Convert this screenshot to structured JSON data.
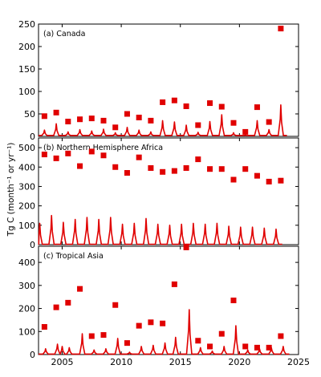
{
  "chart_data": [
    {
      "type": "line",
      "title": "(a) Canada",
      "ylabel": "Tg C (month⁻¹ or yr⁻¹)",
      "ylim": [
        0,
        250
      ],
      "yticks": [
        0,
        50,
        100,
        150,
        200,
        250
      ],
      "xlim": [
        2003,
        2025
      ],
      "xticks": [
        2005,
        2010,
        2015,
        2020,
        2025
      ],
      "xtick_labels_shown": false,
      "grid": false,
      "series": [
        {
          "kind": "annual_squares",
          "color": "#e00000",
          "points": [
            [
              2003.5,
              45
            ],
            [
              2004.5,
              53
            ],
            [
              2005.5,
              33
            ],
            [
              2006.5,
              38
            ],
            [
              2007.5,
              40
            ],
            [
              2008.5,
              35
            ],
            [
              2009.5,
              20
            ],
            [
              2010.5,
              50
            ],
            [
              2011.5,
              42
            ],
            [
              2012.5,
              35
            ],
            [
              2013.5,
              76
            ],
            [
              2014.5,
              80
            ],
            [
              2015.5,
              67
            ],
            [
              2016.5,
              25
            ],
            [
              2017.5,
              74
            ],
            [
              2018.5,
              66
            ],
            [
              2019.5,
              30
            ],
            [
              2020.5,
              10
            ],
            [
              2021.5,
              65
            ],
            [
              2022.5,
              32
            ],
            [
              2023.5,
              240
            ]
          ]
        },
        {
          "kind": "monthly_line",
          "color": "#e00000",
          "peaks": [
            [
              2003.5,
              14
            ],
            [
              2004.5,
              28
            ],
            [
              2005.5,
              10
            ],
            [
              2006.5,
              15
            ],
            [
              2007.5,
              12
            ],
            [
              2008.5,
              16
            ],
            [
              2009.5,
              8
            ],
            [
              2010.5,
              20
            ],
            [
              2011.5,
              14
            ],
            [
              2012.5,
              10
            ],
            [
              2013.5,
              35
            ],
            [
              2014.5,
              32
            ],
            [
              2015.5,
              25
            ],
            [
              2016.5,
              9
            ],
            [
              2017.5,
              33
            ],
            [
              2018.5,
              48
            ],
            [
              2019.5,
              8
            ],
            [
              2020.5,
              4
            ],
            [
              2021.5,
              35
            ],
            [
              2022.5,
              15
            ],
            [
              2023.5,
              70
            ]
          ]
        }
      ]
    },
    {
      "type": "line",
      "title": "(b) Northern Hemisphere Africa",
      "ylim": [
        0,
        550
      ],
      "yticks": [
        0,
        100,
        200,
        300,
        400,
        500
      ],
      "xlim": [
        2003,
        2025
      ],
      "xticks": [
        2005,
        2010,
        2015,
        2020,
        2025
      ],
      "xtick_labels_shown": false,
      "grid": false,
      "series": [
        {
          "kind": "annual_squares",
          "color": "#e00000",
          "points": [
            [
              2003.5,
              465
            ],
            [
              2004.5,
              445
            ],
            [
              2005.5,
              470
            ],
            [
              2006.5,
              405
            ],
            [
              2007.5,
              480
            ],
            [
              2008.5,
              460
            ],
            [
              2009.5,
              400
            ],
            [
              2010.5,
              370
            ],
            [
              2011.5,
              450
            ],
            [
              2012.5,
              395
            ],
            [
              2013.5,
              375
            ],
            [
              2014.5,
              380
            ],
            [
              2015.5,
              395
            ],
            [
              2016.5,
              440
            ],
            [
              2017.5,
              390
            ],
            [
              2018.5,
              390
            ],
            [
              2019.5,
              335
            ],
            [
              2020.5,
              390
            ],
            [
              2021.5,
              355
            ],
            [
              2022.5,
              325
            ],
            [
              2023.5,
              330
            ]
          ]
        },
        {
          "kind": "monthly_line",
          "color": "#e00000",
          "peaks": [
            [
              2003.1,
              110
            ],
            [
              2004.1,
              150
            ],
            [
              2005.1,
              115
            ],
            [
              2006.1,
              130
            ],
            [
              2007.1,
              140
            ],
            [
              2008.1,
              130
            ],
            [
              2009.1,
              140
            ],
            [
              2010.1,
              105
            ],
            [
              2011.1,
              110
            ],
            [
              2012.1,
              135
            ],
            [
              2013.1,
              105
            ],
            [
              2014.1,
              100
            ],
            [
              2015.1,
              105
            ],
            [
              2016.1,
              110
            ],
            [
              2017.1,
              105
            ],
            [
              2018.1,
              110
            ],
            [
              2019.1,
              95
            ],
            [
              2020.1,
              90
            ],
            [
              2021.1,
              90
            ],
            [
              2022.1,
              85
            ],
            [
              2023.1,
              80
            ]
          ]
        }
      ]
    },
    {
      "type": "line",
      "title": "(c) Tropical Asia",
      "ylim": [
        0,
        470
      ],
      "yticks": [
        0,
        100,
        200,
        300,
        400
      ],
      "xlim": [
        2003,
        2025
      ],
      "xticks": [
        2005,
        2010,
        2015,
        2020,
        2025
      ],
      "xtick_labels_shown": true,
      "grid": false,
      "series": [
        {
          "kind": "annual_squares",
          "color": "#e00000",
          "points": [
            [
              2003.5,
              120
            ],
            [
              2004.5,
              205
            ],
            [
              2005.5,
              225
            ],
            [
              2006.5,
              285
            ],
            [
              2007.5,
              80
            ],
            [
              2008.5,
              85
            ],
            [
              2009.5,
              215
            ],
            [
              2010.5,
              50
            ],
            [
              2011.5,
              125
            ],
            [
              2012.5,
              140
            ],
            [
              2013.5,
              135
            ],
            [
              2014.5,
              305
            ],
            [
              2015.5,
              465
            ],
            [
              2016.5,
              60
            ],
            [
              2017.5,
              35
            ],
            [
              2018.5,
              90
            ],
            [
              2019.5,
              235
            ],
            [
              2020.5,
              35
            ],
            [
              2021.5,
              30
            ],
            [
              2022.5,
              30
            ],
            [
              2023.5,
              80
            ]
          ]
        },
        {
          "kind": "monthly_line",
          "color": "#e00000",
          "peaks": [
            [
              2003.6,
              25
            ],
            [
              2004.6,
              45
            ],
            [
              2005.0,
              35
            ],
            [
              2005.6,
              30
            ],
            [
              2006.7,
              90
            ],
            [
              2007.7,
              20
            ],
            [
              2008.7,
              25
            ],
            [
              2009.7,
              70
            ],
            [
              2010.7,
              10
            ],
            [
              2011.7,
              35
            ],
            [
              2012.7,
              40
            ],
            [
              2013.7,
              50
            ],
            [
              2014.6,
              75
            ],
            [
              2015.75,
              195
            ],
            [
              2016.7,
              30
            ],
            [
              2017.7,
              15
            ],
            [
              2018.7,
              35
            ],
            [
              2019.7,
              125
            ],
            [
              2020.7,
              20
            ],
            [
              2021.7,
              25
            ],
            [
              2022.7,
              30
            ],
            [
              2023.7,
              35
            ]
          ]
        }
      ]
    }
  ]
}
